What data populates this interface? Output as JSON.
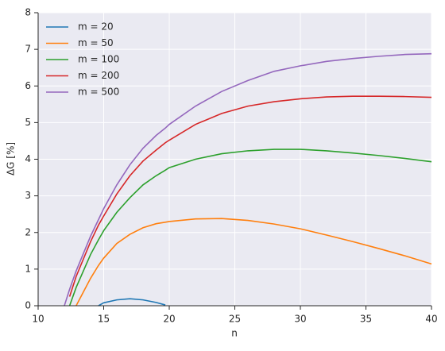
{
  "chart_data": {
    "type": "line",
    "xlabel": "n",
    "ylabel": "ΔG [%]",
    "x": [
      12,
      12.4,
      12.9,
      14,
      14.6,
      15,
      16,
      17,
      18,
      19,
      19.7,
      20,
      22,
      24,
      26,
      28,
      30,
      32,
      34,
      36,
      38,
      40
    ],
    "series": [
      {
        "name": "m = 20",
        "color": "#1f77b4",
        "values": [
          null,
          null,
          null,
          null,
          0,
          0.08,
          0.16,
          0.19,
          0.16,
          0.09,
          0.02,
          null,
          null,
          null,
          null,
          null,
          null,
          null,
          null,
          null,
          null,
          null
        ]
      },
      {
        "name": "m = 50",
        "color": "#ff7f0e",
        "values": [
          null,
          null,
          0,
          0.75,
          1.1,
          1.3,
          1.7,
          1.95,
          2.13,
          2.24,
          2.28,
          2.3,
          2.37,
          2.38,
          2.33,
          2.23,
          2.1,
          1.93,
          1.75,
          1.56,
          1.36,
          1.14
        ]
      },
      {
        "name": "m = 100",
        "color": "#2ca02c",
        "values": [
          null,
          0,
          0.5,
          1.4,
          1.8,
          2.05,
          2.55,
          2.95,
          3.3,
          3.55,
          3.7,
          3.77,
          4.0,
          4.15,
          4.23,
          4.27,
          4.27,
          4.23,
          4.17,
          4.1,
          4.02,
          3.93
        ]
      },
      {
        "name": "m = 200",
        "color": "#d62728",
        "values": [
          null,
          0.25,
          0.8,
          1.75,
          2.2,
          2.45,
          3.05,
          3.55,
          3.95,
          4.25,
          4.45,
          4.52,
          4.95,
          5.25,
          5.45,
          5.57,
          5.65,
          5.7,
          5.72,
          5.72,
          5.71,
          5.69
        ]
      },
      {
        "name": "m = 500",
        "color": "#9467bd",
        "values": [
          0,
          0.45,
          0.95,
          1.9,
          2.35,
          2.65,
          3.3,
          3.85,
          4.3,
          4.65,
          4.85,
          4.95,
          5.45,
          5.85,
          6.15,
          6.4,
          6.55,
          6.67,
          6.75,
          6.81,
          6.86,
          6.88
        ]
      }
    ],
    "xlim": [
      10,
      40
    ],
    "xticks": [
      10,
      15,
      20,
      25,
      30,
      35,
      40
    ],
    "ylim": [
      0,
      8
    ],
    "yticks": [
      0,
      1,
      2,
      3,
      4,
      5,
      6,
      7,
      8
    ],
    "grid": true,
    "legend": "upper-left"
  }
}
